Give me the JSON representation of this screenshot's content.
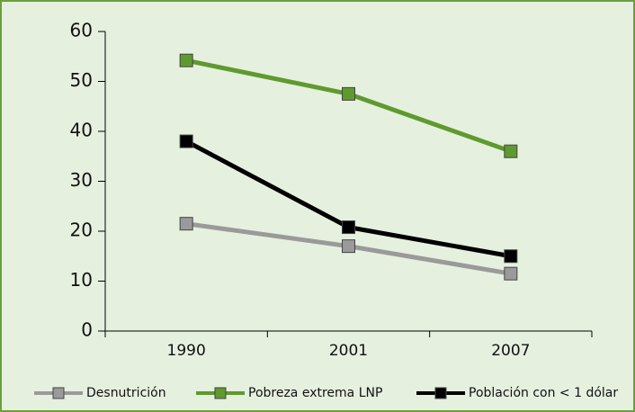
{
  "chart_data": {
    "type": "line",
    "categories": [
      "1990",
      "2001",
      "2007"
    ],
    "series": [
      {
        "name": "Desnutrición",
        "color": "#9a9a9a",
        "values": [
          21.5,
          17,
          11.5
        ]
      },
      {
        "name": "Pobreza extrema LNP",
        "color": "#5f9a2e",
        "values": [
          54.2,
          47.5,
          36
        ]
      },
      {
        "name": "Población con < 1 dólar",
        "color": "#000000",
        "values": [
          38,
          20.8,
          15
        ]
      }
    ],
    "ylim": [
      0,
      60
    ],
    "yticks": [
      0,
      10,
      20,
      30,
      40,
      50,
      60
    ],
    "grid": false
  }
}
